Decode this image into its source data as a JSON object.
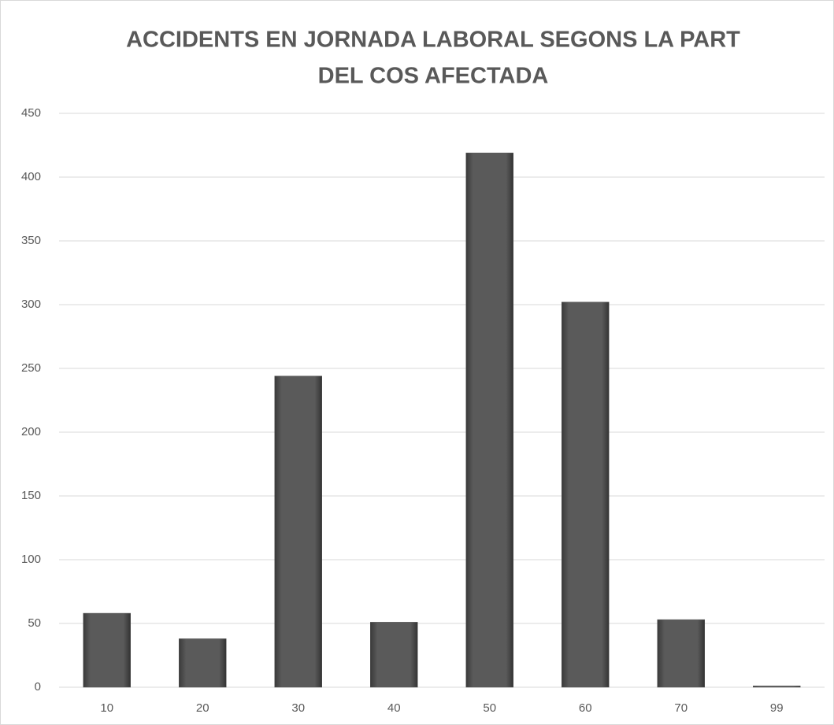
{
  "chart_data": {
    "type": "bar",
    "title": [
      "ACCIDENTS EN JORNADA LABORAL SEGONS LA PART",
      "DEL COS AFECTADA"
    ],
    "categories": [
      "10",
      "20",
      "30",
      "40",
      "50",
      "60",
      "70",
      "99"
    ],
    "values": [
      58,
      38,
      244,
      51,
      419,
      302,
      53,
      1
    ],
    "color": "#555555",
    "ylim": [
      0,
      450
    ],
    "yticks": [
      0,
      50,
      100,
      150,
      200,
      250,
      300,
      350,
      400,
      450
    ],
    "grid": true
  }
}
